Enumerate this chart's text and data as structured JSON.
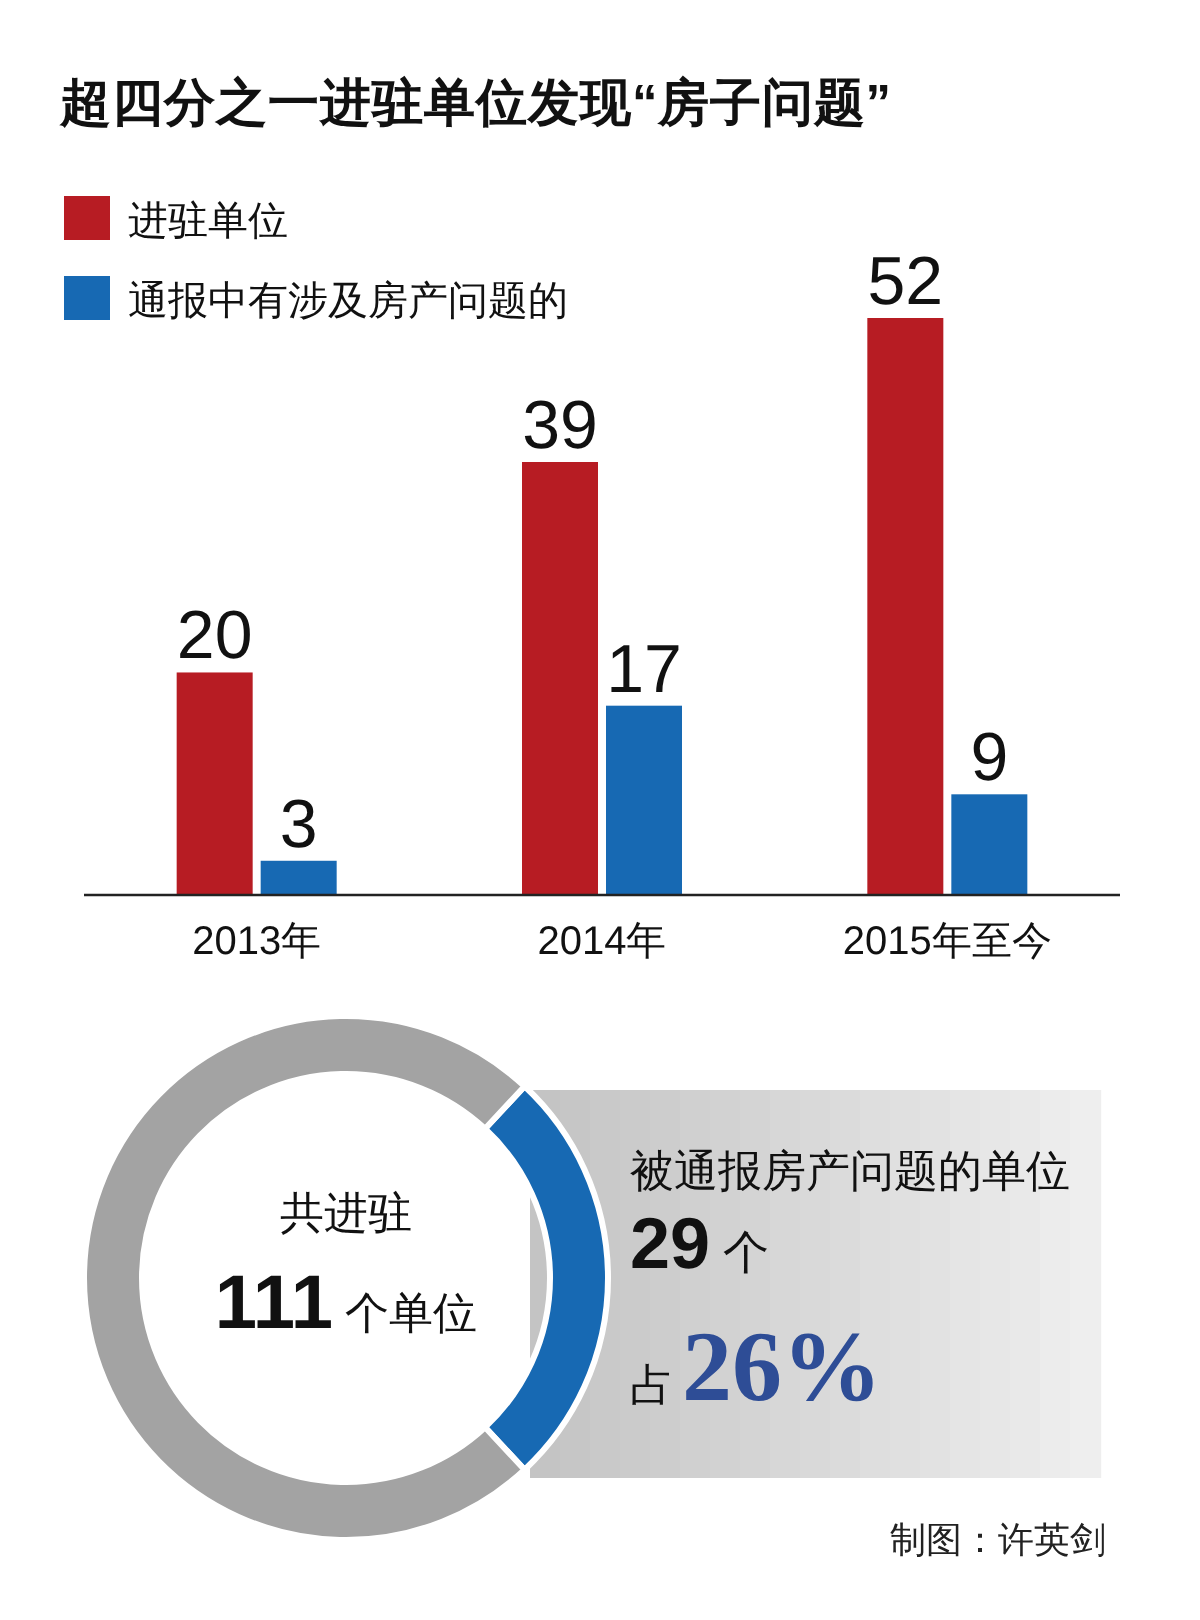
{
  "chart_data": [
    {
      "type": "bar",
      "title": "超四分之一进驻单位发现“房子问题”",
      "categories": [
        "2013年",
        "2014年",
        "2015年至今"
      ],
      "series": [
        {
          "name": "进驻单位",
          "color": "#b71c23",
          "values": [
            20,
            39,
            52
          ]
        },
        {
          "name": "通报中有涉及房产问题的",
          "color": "#1769b3",
          "values": [
            3,
            17,
            9
          ]
        }
      ],
      "data_labels": true,
      "legend": "top left"
    },
    {
      "type": "donut",
      "categories": [
        "被通报房产问题的单位",
        null
      ],
      "values": [
        29,
        82
      ],
      "colors": [
        "#1769b3",
        "#a3a3a3"
      ],
      "value_labels": [
        "**29** 个",
        null
      ],
      "annotations": [
        "共进驻",
        "**111** 个单位",
        "占**26%**",
        "制图：许英剑"
      ]
    }
  ]
}
